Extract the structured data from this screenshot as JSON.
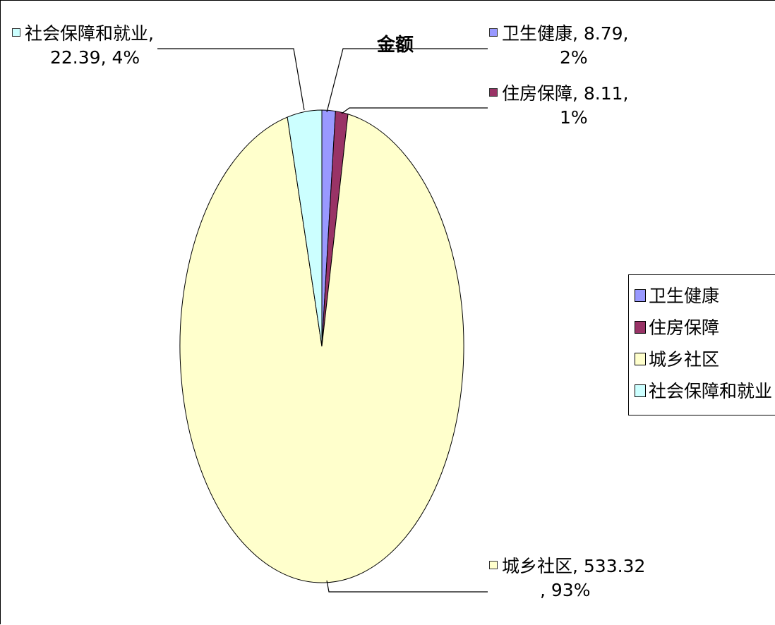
{
  "chart_data": {
    "type": "pie",
    "title": "金额",
    "slices": [
      {
        "name": "卫生健康",
        "value": 8.79,
        "percent": "2%",
        "color": "#9999ff"
      },
      {
        "name": "住房保障",
        "value": 8.11,
        "percent": "1%",
        "color": "#993366"
      },
      {
        "name": "城乡社区",
        "value": 533.32,
        "percent": "93%",
        "color": "#ffffcc"
      },
      {
        "name": "社会保障和就业",
        "value": 22.39,
        "percent": "4%",
        "color": "#ccffff"
      }
    ],
    "data_labels": {
      "health_l1": "卫生健康, 8.79,",
      "health_l2": "2%",
      "housing_l1": "住房保障, 8.11,",
      "housing_l2": "1%",
      "urban_l1": "城乡社区, 533.32",
      "urban_l2": ", 93%",
      "social_l1": "社会保障和就业,",
      "social_l2": "22.39, 4%"
    },
    "legend": [
      "卫生健康",
      "住房保障",
      "城乡社区",
      "社会保障和就业"
    ],
    "legend_position": "right"
  }
}
